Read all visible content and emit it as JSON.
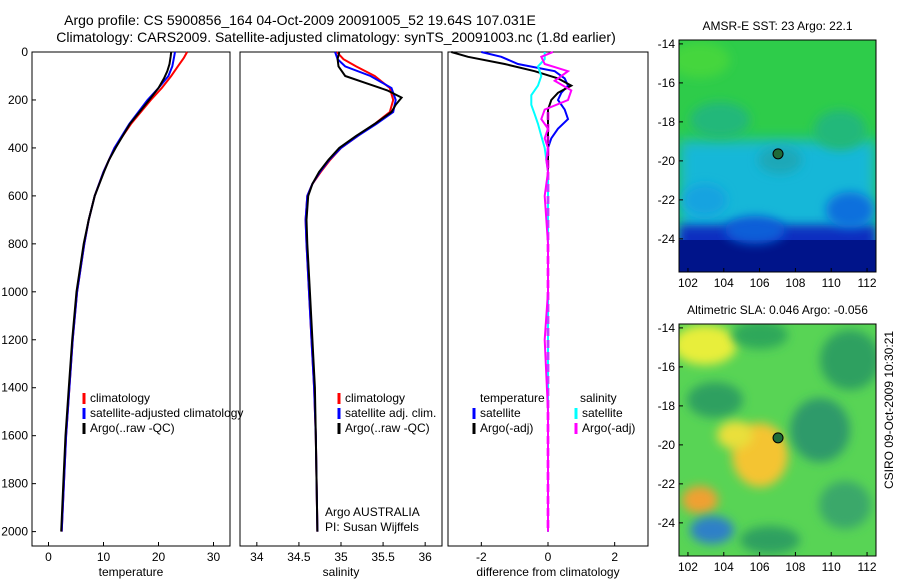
{
  "header": {
    "line1": "Argo profile: CS 5900856_164 04-Oct-2009 20091005_52 19.64S 107.031E",
    "line2": "Climatology: CARS2009. Satellite-adjusted climatology: synTS_20091003.nc (1.8d earlier)"
  },
  "side_stamp": "CSIRO 09-Oct-2009 10:30:21",
  "colors": {
    "red": "#ff0000",
    "blue": "#0000ff",
    "black": "#000000",
    "cyan": "#00ffff",
    "magenta": "#ff00ff",
    "marker": "#1f6b3a"
  },
  "chart_data": [
    {
      "type": "line",
      "id": "temperature",
      "xlabel": "temperature",
      "ylabel": "",
      "xlim": [
        -3,
        33
      ],
      "ylim": [
        0,
        2060
      ],
      "y_reversed": true,
      "xticks": [
        0,
        10,
        20,
        30
      ],
      "xtick_labels": [
        "0",
        "10",
        "20",
        "30"
      ],
      "yticks": [
        0,
        200,
        400,
        600,
        800,
        1000,
        1200,
        1400,
        1600,
        1800,
        2000
      ],
      "ytick_labels": [
        "0",
        "200",
        "400",
        "600",
        "800",
        "1000",
        "1200",
        "1400",
        "1600",
        "1800",
        "2000"
      ],
      "legend": [
        "climatology",
        "satellite-adjusted climatology",
        "Argo(..raw -QC)"
      ],
      "legend_colors": [
        "#ff0000",
        "#0000ff",
        "#000000"
      ],
      "series": [
        {
          "name": "climatology",
          "color": "#ff0000",
          "depth": [
            0,
            25,
            60,
            100,
            150,
            200,
            300,
            400,
            500,
            600,
            700,
            800,
            1000,
            1200,
            1400,
            1600,
            1800,
            2000
          ],
          "values": [
            25.2,
            24.6,
            23.5,
            22.3,
            20.6,
            18.6,
            15.0,
            12.0,
            10.0,
            8.4,
            7.3,
            6.5,
            5.2,
            4.4,
            3.8,
            3.2,
            2.8,
            2.4
          ]
        },
        {
          "name": "satellite-adjusted climatology",
          "color": "#0000ff",
          "depth": [
            0,
            25,
            60,
            100,
            150,
            200,
            300,
            400,
            500,
            600,
            700,
            800,
            1000,
            1200,
            1400,
            1600,
            1800,
            2000
          ],
          "values": [
            23.0,
            22.8,
            22.5,
            21.8,
            20.0,
            18.0,
            14.7,
            12.0,
            10.0,
            8.4,
            7.3,
            6.5,
            5.2,
            4.4,
            3.8,
            3.2,
            2.8,
            2.4
          ]
        },
        {
          "name": "Argo(..raw -QC)",
          "color": "#000000",
          "depth": [
            0,
            20,
            50,
            80,
            110,
            150,
            200,
            300,
            400,
            450,
            500,
            600,
            700,
            800,
            1000,
            1200,
            1400,
            1600,
            1800,
            2000
          ],
          "values": [
            22.3,
            22.2,
            22.0,
            21.6,
            21.0,
            20.0,
            18.3,
            14.8,
            12.2,
            11.0,
            10.1,
            8.4,
            7.3,
            6.4,
            5.1,
            4.3,
            3.7,
            3.1,
            2.7,
            2.3
          ]
        }
      ]
    },
    {
      "type": "line",
      "id": "salinity",
      "xlabel": "salinity",
      "xlim": [
        33.8,
        36.2
      ],
      "ylim": [
        0,
        2060
      ],
      "y_reversed": true,
      "xticks": [
        34,
        34.5,
        35,
        35.5,
        36
      ],
      "xtick_labels": [
        "34",
        "34.5",
        "35",
        "35.5",
        "36"
      ],
      "legend": [
        "climatology",
        "satellite adj. clim.",
        "Argo(..raw -QC)"
      ],
      "legend_colors": [
        "#ff0000",
        "#0000ff",
        "#000000"
      ],
      "annotation": [
        "Argo AUSTRALIA",
        "PI: Susan Wijffels"
      ],
      "series": [
        {
          "name": "climatology",
          "color": "#ff0000",
          "depth": [
            0,
            30,
            60,
            100,
            150,
            200,
            250,
            300,
            350,
            400,
            450,
            500,
            550,
            600,
            700,
            800,
            1000,
            1200,
            1400,
            1600,
            1800,
            2000
          ],
          "values": [
            34.95,
            35.03,
            35.18,
            35.4,
            35.58,
            35.62,
            35.58,
            35.4,
            35.2,
            35.0,
            34.87,
            34.76,
            34.66,
            34.6,
            34.58,
            34.59,
            34.62,
            34.65,
            34.68,
            34.7,
            34.71,
            34.72
          ]
        },
        {
          "name": "satellite adj. clim.",
          "color": "#0000ff",
          "depth": [
            0,
            30,
            60,
            100,
            150,
            200,
            250,
            300,
            350,
            400,
            450,
            500,
            550,
            600,
            700,
            800,
            1000,
            1200,
            1400,
            1600,
            1800,
            2000
          ],
          "values": [
            34.93,
            34.96,
            35.05,
            35.35,
            35.6,
            35.65,
            35.62,
            35.42,
            35.2,
            35.0,
            34.86,
            34.75,
            34.66,
            34.6,
            34.58,
            34.59,
            34.62,
            34.65,
            34.68,
            34.7,
            34.71,
            34.72
          ]
        },
        {
          "name": "Argo(..raw -QC)",
          "color": "#000000",
          "depth": [
            0,
            30,
            60,
            100,
            130,
            160,
            190,
            220,
            250,
            300,
            350,
            400,
            450,
            500,
            550,
            600,
            700,
            800,
            1000,
            1200,
            1400,
            1600,
            1800,
            2000
          ],
          "values": [
            34.98,
            34.96,
            34.97,
            35.05,
            35.3,
            35.55,
            35.72,
            35.65,
            35.6,
            35.4,
            35.18,
            34.98,
            34.85,
            34.74,
            34.66,
            34.61,
            34.59,
            34.6,
            34.63,
            34.66,
            34.69,
            34.7,
            34.71,
            34.72
          ]
        }
      ]
    },
    {
      "type": "line",
      "id": "difference",
      "xlabel": "difference from climatology",
      "xlim": [
        -3,
        3
      ],
      "ylim": [
        0,
        2060
      ],
      "y_reversed": true,
      "xticks": [
        -2,
        0,
        2
      ],
      "xtick_labels": [
        "-2",
        "0",
        "2"
      ],
      "legend_titles": [
        "temperature",
        "salinity"
      ],
      "legend": [
        "satellite",
        "Argo(-adj)",
        "satellite",
        "Argo(-adj)"
      ],
      "legend_colors": [
        "#0000ff",
        "#000000",
        "#00ffff",
        "#ff00ff"
      ],
      "series": [
        {
          "name": "temperature satellite",
          "color": "#0000ff",
          "depth": [
            0,
            20,
            50,
            80,
            110,
            140,
            170,
            200,
            240,
            280,
            320,
            360,
            400,
            500,
            600,
            800,
            1000,
            1500,
            2000
          ],
          "values": [
            -2.0,
            -1.4,
            -0.9,
            0.2,
            0.5,
            0.6,
            0.4,
            0.3,
            0.5,
            0.6,
            0.3,
            0.1,
            0.0,
            0.0,
            0.0,
            0.0,
            0.0,
            0.0,
            0.0
          ]
        },
        {
          "name": "temperature Argo(-adj)",
          "color": "#000000",
          "depth": [
            0,
            20,
            50,
            80,
            110,
            140,
            170,
            200,
            240,
            280,
            320,
            360,
            400,
            500,
            600,
            800,
            1000,
            1500,
            2000
          ],
          "values": [
            -2.9,
            -2.4,
            -1.3,
            -0.4,
            0.3,
            0.7,
            0.3,
            0.1,
            0.0,
            0.0,
            0.0,
            0.0,
            0.0,
            0.0,
            0.0,
            0.0,
            0.0,
            0.0,
            0.0
          ]
        },
        {
          "name": "salinity satellite",
          "color": "#00ffff",
          "depth": [
            0,
            30,
            60,
            100,
            140,
            180,
            220,
            260,
            300,
            350,
            400,
            500,
            600,
            800,
            1000,
            1500,
            2000
          ],
          "values": [
            -0.1,
            -0.1,
            -0.3,
            -0.2,
            -0.3,
            -0.5,
            -0.5,
            -0.4,
            -0.3,
            -0.2,
            -0.1,
            0.0,
            0.0,
            0.0,
            0.0,
            0.0,
            0.0
          ]
        },
        {
          "name": "salinity Argo(-adj)",
          "color": "#ff00ff",
          "depth": [
            0,
            20,
            50,
            80,
            120,
            160,
            200,
            240,
            280,
            320,
            360,
            400,
            450,
            500,
            600,
            800,
            1000,
            1200,
            1500,
            1800,
            2000
          ],
          "values": [
            0.15,
            -0.2,
            -0.1,
            0.6,
            0.2,
            0.7,
            0.6,
            -0.1,
            -0.2,
            0.0,
            -0.1,
            0.0,
            -0.05,
            0.0,
            -0.1,
            0.0,
            0.0,
            -0.1,
            0.0,
            0.0,
            0.0
          ]
        }
      ]
    },
    {
      "type": "heatmap",
      "id": "sst_map",
      "title": "AMSR-E SST: 23 Argo: 22.1",
      "xlim": [
        101.5,
        112.5
      ],
      "ylim": [
        -25.7,
        -13.8
      ],
      "xticks": [
        102,
        104,
        106,
        108,
        110,
        112
      ],
      "xtick_labels": [
        "102",
        "104",
        "106",
        "108",
        "110",
        "112"
      ],
      "yticks": [
        -14,
        -16,
        -18,
        -20,
        -22,
        -24
      ],
      "ytick_labels": [
        "-14",
        "-16",
        "-18",
        "-20",
        "-22",
        "-24"
      ],
      "marker": {
        "lon": 107.03,
        "lat": -19.64
      }
    },
    {
      "type": "heatmap",
      "id": "sla_map",
      "title": "Altimetric SLA: 0.046 Argo: -0.056",
      "xlim": [
        101.5,
        112.5
      ],
      "ylim": [
        -25.7,
        -13.8
      ],
      "xticks": [
        102,
        104,
        106,
        108,
        110,
        112
      ],
      "xtick_labels": [
        "102",
        "104",
        "106",
        "108",
        "110",
        "112"
      ],
      "yticks": [
        -14,
        -16,
        -18,
        -20,
        -22,
        -24
      ],
      "ytick_labels": [
        "-14",
        "-16",
        "-18",
        "-20",
        "-22",
        "-24"
      ],
      "marker": {
        "lon": 107.03,
        "lat": -19.64
      }
    }
  ]
}
